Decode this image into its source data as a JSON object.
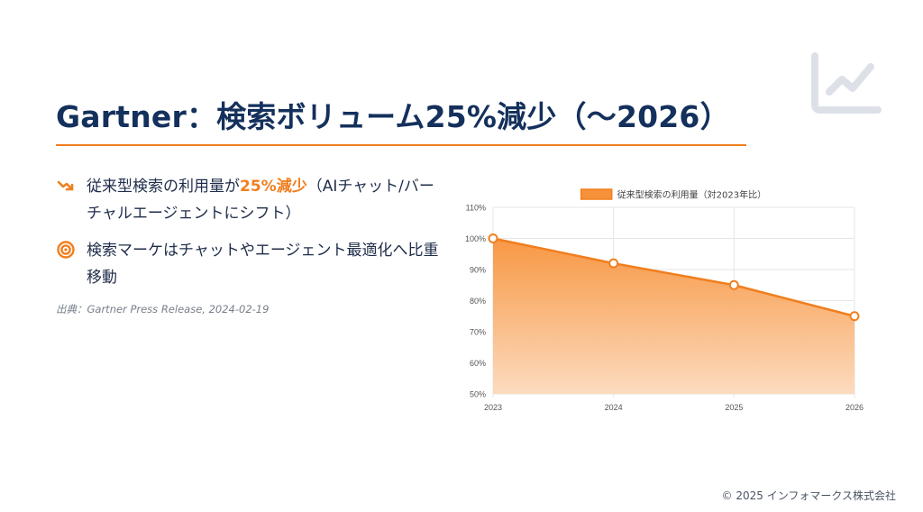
{
  "slide": {
    "title": "Gartner：検索ボリューム25%減少（〜2026）",
    "icon": "trend-chart-icon",
    "accent_color": "#f07f1e",
    "title_color": "#14305c"
  },
  "bullets": [
    {
      "icon": "trend-down-icon",
      "text_before": "従来型検索の利用量が",
      "highlight": "25%減少",
      "text_after": "（AIチャット/バーチャルエージェントにシフト）"
    },
    {
      "icon": "target-icon",
      "text": "検索マーケはチャットやエージェント最適化へ比重移動"
    }
  ],
  "source": "出典：Gartner Press Release, 2024-02-19",
  "footer": "© 2025 インフォマークス株式会社",
  "chart_data": {
    "type": "area",
    "legend": "従来型検索の利用量（対2023年比）",
    "legend_position": "top",
    "categories": [
      "2023",
      "2024",
      "2025",
      "2026"
    ],
    "series": [
      {
        "name": "従来型検索の利用量（対2023年比）",
        "values": [
          100,
          92,
          85,
          75
        ],
        "color": "#f07f1e"
      }
    ],
    "y_ticks": [
      "110%",
      "100%",
      "90%",
      "80%",
      "70%",
      "60%",
      "50%"
    ],
    "ylim": [
      50,
      110
    ],
    "y_unit": "%",
    "grid": true
  }
}
